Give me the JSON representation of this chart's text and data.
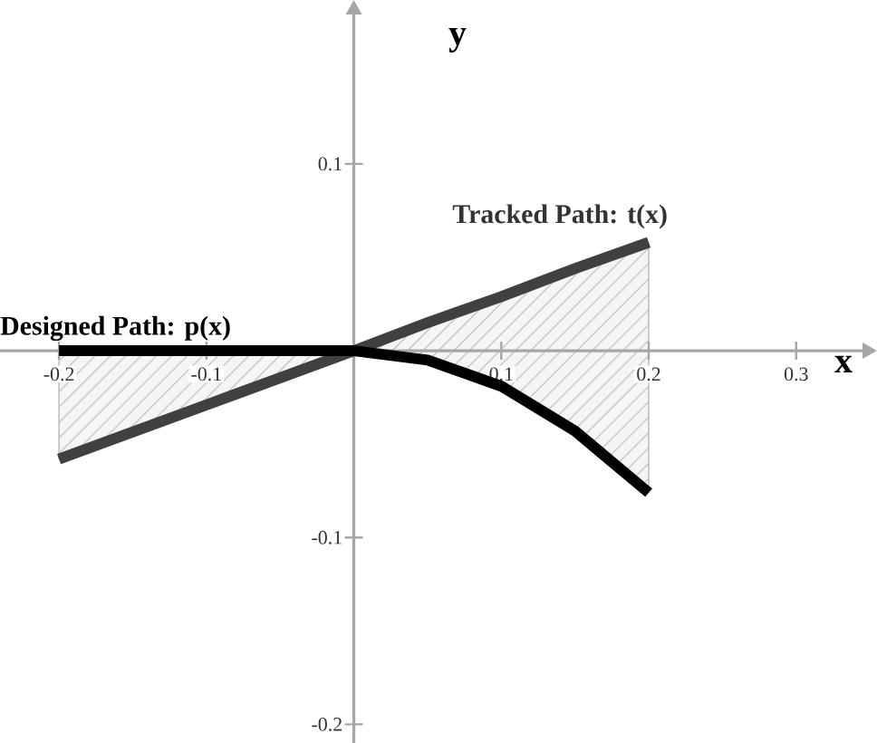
{
  "chart_data": {
    "type": "line",
    "xlabel": "x",
    "ylabel": "y",
    "xlim": [
      -0.24,
      0.345
    ],
    "ylim": [
      -0.21,
      0.18
    ],
    "xticks": [
      -0.2,
      -0.1,
      0.1,
      0.2,
      0.3
    ],
    "yticks": [
      0.1,
      -0.1,
      -0.2
    ],
    "grid": false,
    "legend": false,
    "series": [
      {
        "name": "Tracked Path: t(x)",
        "color": "#404040",
        "x": [
          -0.2,
          -0.1,
          0,
          0.05,
          0.1,
          0.15,
          0.2
        ],
        "values": [
          -0.058,
          -0.029,
          0,
          0.015,
          0.029,
          0.044,
          0.058
        ]
      },
      {
        "name": "Designed Path: p(x)",
        "color": "#000000",
        "x": [
          -0.2,
          -0.1,
          0,
          0.05,
          0.1,
          0.15,
          0.2
        ],
        "values": [
          0,
          0,
          0,
          -0.005,
          -0.019,
          -0.043,
          -0.076
        ]
      }
    ]
  }
}
